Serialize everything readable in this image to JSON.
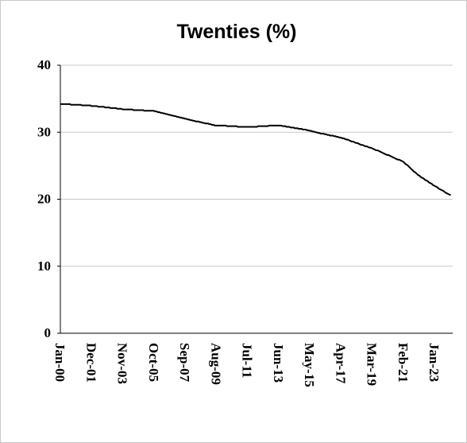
{
  "chart_data": {
    "type": "line",
    "title": "Twenties (%)",
    "color": "#000000",
    "grid": true,
    "ylim": [
      0,
      40
    ],
    "yticks": [
      0,
      10,
      20,
      30,
      40
    ],
    "categories": [
      "Jan-00",
      null,
      null,
      null,
      null,
      null,
      null,
      null,
      null,
      null,
      null,
      null,
      null,
      null,
      null,
      null,
      null,
      null,
      null,
      null,
      null,
      null,
      null,
      "Dec-01",
      null,
      null,
      null,
      null,
      null,
      null,
      null,
      null,
      null,
      null,
      null,
      null,
      null,
      null,
      null,
      null,
      null,
      null,
      null,
      null,
      null,
      null,
      "Nov-03",
      null,
      null,
      null,
      null,
      null,
      null,
      null,
      null,
      null,
      null,
      null,
      null,
      null,
      null,
      null,
      null,
      null,
      null,
      null,
      null,
      null,
      null,
      "Oct-05",
      null,
      null,
      null,
      null,
      null,
      null,
      null,
      null,
      null,
      null,
      null,
      null,
      null,
      null,
      null,
      null,
      null,
      null,
      null,
      null,
      null,
      null,
      "Sep-07",
      null,
      null,
      null,
      null,
      null,
      null,
      null,
      null,
      null,
      null,
      null,
      null,
      null,
      null,
      null,
      null,
      null,
      null,
      null,
      null,
      null,
      null,
      "Aug-09",
      null,
      null,
      null,
      null,
      null,
      null,
      null,
      null,
      null,
      null,
      null,
      null,
      null,
      null,
      null,
      null,
      null,
      null,
      null,
      null,
      null,
      null,
      "Jul-11",
      null,
      null,
      null,
      null,
      null,
      null,
      null,
      null,
      null,
      null,
      null,
      null,
      null,
      null,
      null,
      null,
      null,
      null,
      null,
      null,
      null,
      null,
      "Jun-13",
      null,
      null,
      null,
      null,
      null,
      null,
      null,
      null,
      null,
      null,
      null,
      null,
      null,
      null,
      null,
      null,
      null,
      null,
      null,
      null,
      null,
      null,
      "May-15",
      null,
      null,
      null,
      null,
      null,
      null,
      null,
      null,
      null,
      null,
      null,
      null,
      null,
      null,
      null,
      null,
      null,
      null,
      null,
      null,
      null,
      null,
      "Apr-17",
      null,
      null,
      null,
      null,
      null,
      null,
      null,
      null,
      null,
      null,
      null,
      null,
      null,
      null,
      null,
      null,
      null,
      null,
      null,
      null,
      null,
      null,
      "Mar-19",
      null,
      null,
      null,
      null,
      null,
      null,
      null,
      null,
      null,
      null,
      null,
      null,
      null,
      null,
      null,
      null,
      null,
      null,
      null,
      null,
      null,
      null,
      "Feb-21",
      null,
      null,
      null,
      null,
      null,
      null,
      null,
      null,
      null,
      null,
      null,
      null,
      null,
      null,
      null,
      null,
      null,
      null,
      null,
      null,
      null,
      null,
      "Jan-23",
      null,
      null,
      null,
      null,
      null,
      null,
      null,
      null,
      null,
      null,
      null,
      null
    ],
    "values": [
      34.2,
      34.2,
      34.2,
      34.2,
      34.2,
      34.2,
      34.2,
      34.2,
      34.1,
      34.1,
      34.1,
      34.1,
      34.1,
      34.1,
      34.1,
      34.1,
      34.0,
      34.0,
      34.0,
      34.0,
      34.0,
      34.0,
      34.0,
      33.9,
      33.9,
      33.9,
      33.9,
      33.9,
      33.8,
      33.8,
      33.8,
      33.8,
      33.8,
      33.7,
      33.7,
      33.7,
      33.7,
      33.6,
      33.6,
      33.6,
      33.6,
      33.6,
      33.5,
      33.5,
      33.5,
      33.5,
      33.4,
      33.4,
      33.4,
      33.4,
      33.4,
      33.4,
      33.4,
      33.4,
      33.3,
      33.3,
      33.3,
      33.3,
      33.3,
      33.3,
      33.3,
      33.3,
      33.2,
      33.2,
      33.2,
      33.2,
      33.2,
      33.2,
      33.2,
      33.2,
      33.1,
      33.1,
      33.0,
      33.0,
      32.9,
      32.9,
      32.8,
      32.8,
      32.7,
      32.7,
      32.6,
      32.6,
      32.5,
      32.5,
      32.4,
      32.4,
      32.3,
      32.3,
      32.2,
      32.2,
      32.1,
      32.1,
      32.0,
      32.0,
      31.9,
      31.9,
      31.8,
      31.8,
      31.7,
      31.7,
      31.6,
      31.6,
      31.6,
      31.5,
      31.5,
      31.4,
      31.4,
      31.3,
      31.3,
      31.3,
      31.2,
      31.2,
      31.1,
      31.1,
      31.0,
      31.0,
      31.0,
      31.0,
      31.0,
      31.0,
      31.0,
      31.0,
      31.0,
      30.9,
      30.9,
      30.9,
      30.9,
      30.9,
      30.9,
      30.9,
      30.9,
      30.8,
      30.8,
      30.8,
      30.8,
      30.8,
      30.8,
      30.8,
      30.8,
      30.8,
      30.8,
      30.8,
      30.8,
      30.8,
      30.8,
      30.8,
      30.9,
      30.9,
      30.9,
      30.9,
      30.9,
      30.9,
      30.9,
      30.9,
      31.0,
      31.0,
      31.0,
      31.0,
      31.0,
      31.0,
      31.0,
      31.0,
      31.0,
      31.0,
      30.9,
      30.9,
      30.9,
      30.8,
      30.8,
      30.8,
      30.7,
      30.7,
      30.7,
      30.6,
      30.6,
      30.6,
      30.5,
      30.5,
      30.5,
      30.4,
      30.4,
      30.4,
      30.3,
      30.3,
      30.2,
      30.2,
      30.1,
      30.1,
      30.0,
      30.0,
      29.9,
      29.9,
      29.8,
      29.8,
      29.8,
      29.7,
      29.7,
      29.6,
      29.6,
      29.5,
      29.5,
      29.5,
      29.4,
      29.4,
      29.3,
      29.3,
      29.2,
      29.2,
      29.1,
      29.1,
      29.0,
      28.9,
      28.9,
      28.8,
      28.7,
      28.6,
      28.6,
      28.5,
      28.4,
      28.4,
      28.3,
      28.2,
      28.1,
      28.1,
      28.0,
      27.9,
      27.9,
      27.8,
      27.7,
      27.7,
      27.6,
      27.5,
      27.4,
      27.3,
      27.3,
      27.2,
      27.1,
      27.0,
      26.9,
      26.8,
      26.7,
      26.6,
      26.6,
      26.5,
      26.4,
      26.3,
      26.2,
      26.1,
      26.0,
      25.9,
      25.9,
      25.8,
      25.7,
      25.6,
      25.4,
      25.2,
      25.1,
      24.9,
      24.7,
      24.5,
      24.3,
      24.1,
      24.0,
      23.8,
      23.6,
      23.5,
      23.3,
      23.2,
      23.1,
      22.9,
      22.8,
      22.7,
      22.5,
      22.4,
      22.3,
      22.1,
      22.0,
      21.9,
      21.8,
      21.6,
      21.5,
      21.4,
      21.3,
      21.2,
      21.0,
      20.9,
      20.8,
      20.7,
      20.6
    ]
  }
}
